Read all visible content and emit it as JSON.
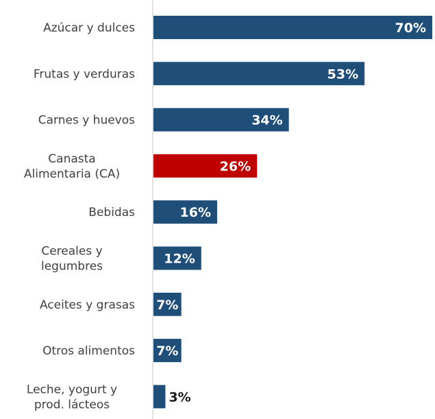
{
  "chart_data": {
    "type": "bar",
    "orientation": "horizontal",
    "categories": [
      [
        "Azúcar y dulces"
      ],
      [
        "Frutas y verduras"
      ],
      [
        "Carnes y huevos"
      ],
      [
        "Canasta",
        "Alimentaria (CA)"
      ],
      [
        "Bebidas"
      ],
      [
        "Cereales y",
        "legumbres"
      ],
      [
        "Aceites y grasas"
      ],
      [
        "Otros alimentos"
      ],
      [
        "Leche, yogurt y",
        "prod. lácteos"
      ]
    ],
    "values": [
      70,
      53,
      34,
      26,
      16,
      12,
      7,
      7,
      3
    ],
    "value_labels": [
      "70%",
      "53%",
      "34%",
      "26%",
      "16%",
      "12%",
      "7%",
      "7%",
      "3%"
    ],
    "xlim": [
      0,
      70
    ],
    "grid": false,
    "colors": {
      "default": "#1f4e79",
      "highlight": "#c00000",
      "axis": "#d9d9d9"
    },
    "highlight_index": 3
  }
}
